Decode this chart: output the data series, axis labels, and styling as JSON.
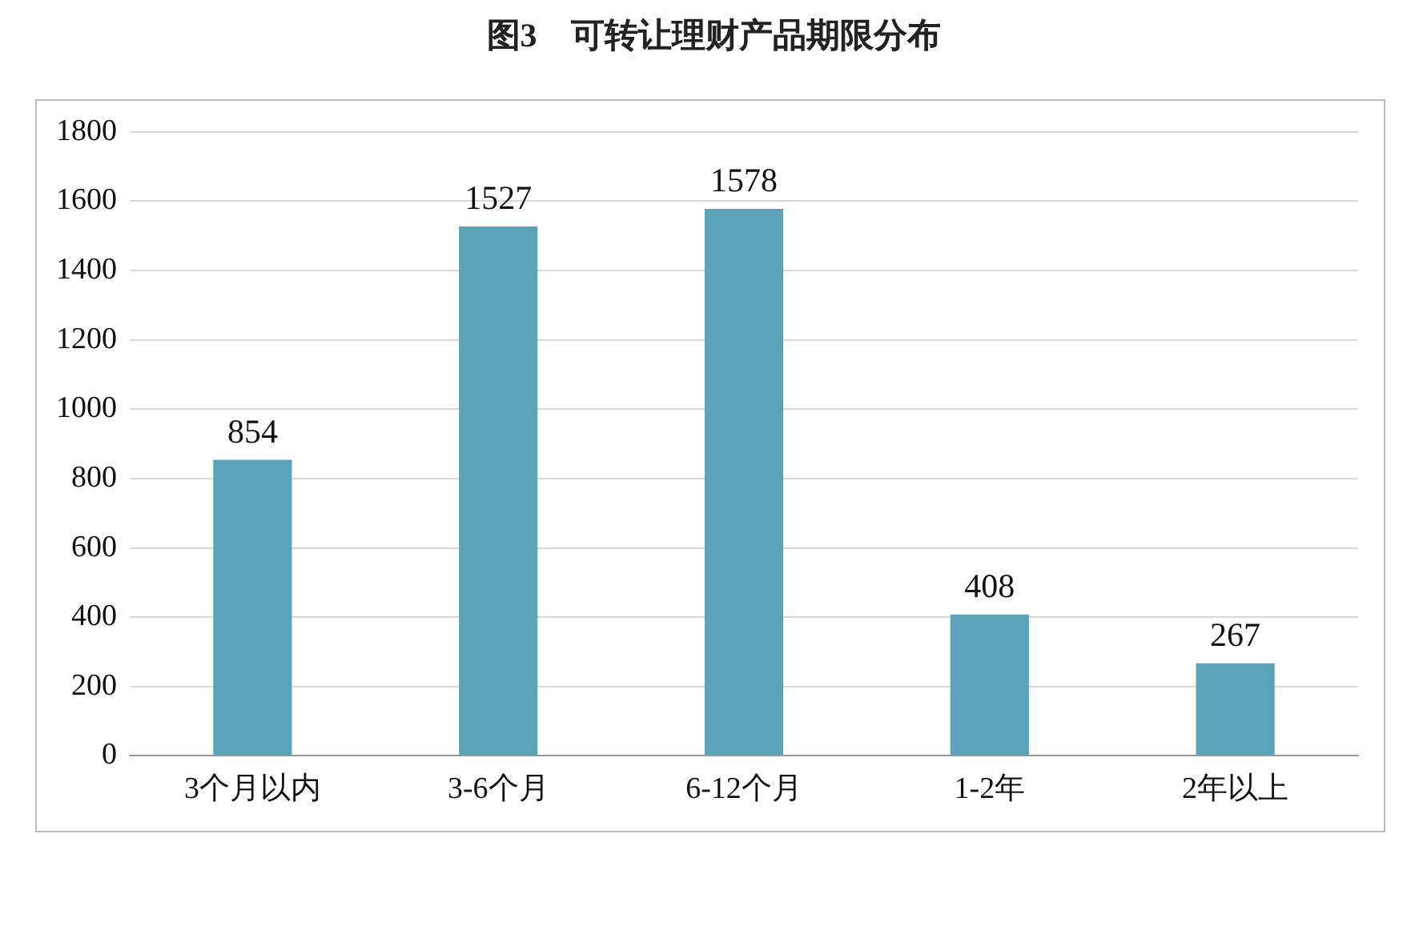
{
  "chart_data": {
    "type": "bar",
    "title": "图3　可转让理财产品期限分布",
    "categories": [
      "3个月以内",
      "3-6个月",
      "6-12个月",
      "1-2年",
      "2年以上"
    ],
    "values": [
      854,
      1527,
      1578,
      408,
      267
    ],
    "color": "#5ba3b8",
    "ylim": [
      0,
      1800
    ],
    "yticks": [
      0,
      200,
      400,
      600,
      800,
      1000,
      1200,
      1400,
      1600,
      1800
    ],
    "grid": "y",
    "data_labels": true
  }
}
